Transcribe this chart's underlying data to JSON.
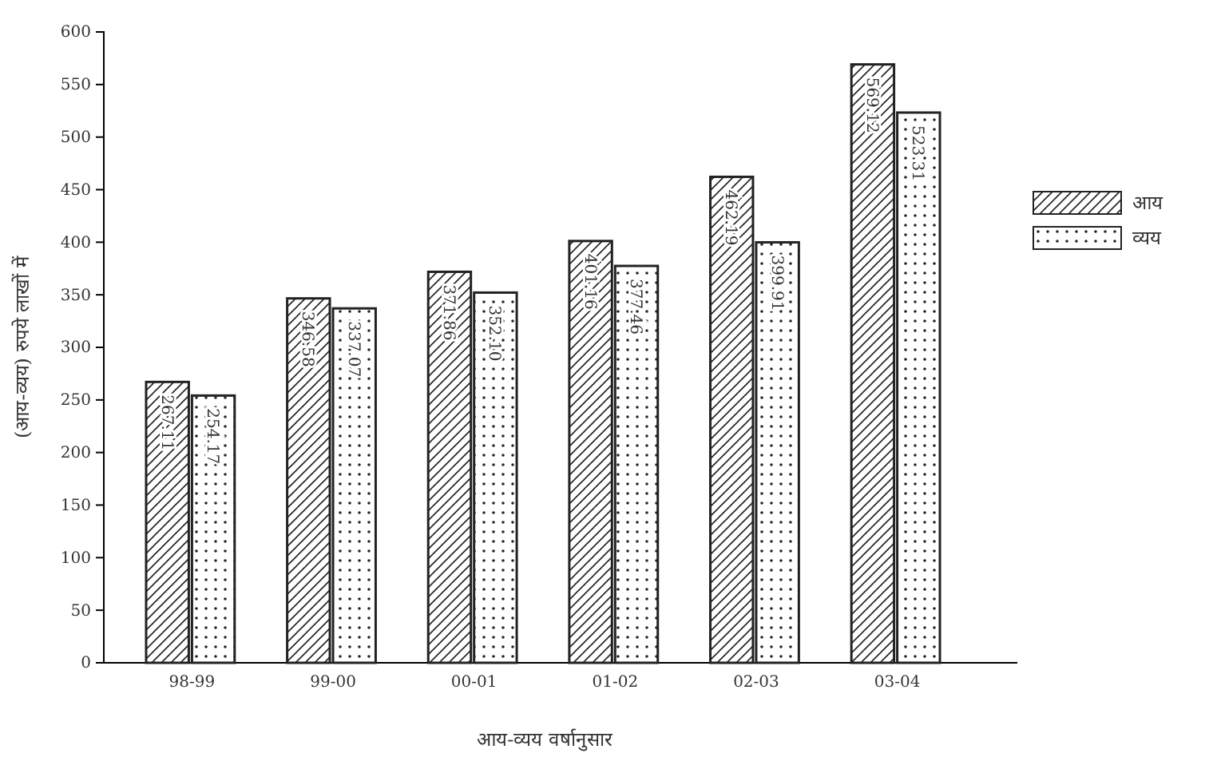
{
  "chart_data": {
    "type": "bar",
    "xlabel": "आय-व्यय वर्षानुसार",
    "ylabel": "(आय-व्यय) रुपये लाखों में",
    "categories": [
      "98-99",
      "99-00",
      "00-01",
      "01-02",
      "02-03",
      "03-04"
    ],
    "series": [
      {
        "name": "आय",
        "color": "#222222",
        "values": [
          267.11,
          346.58,
          371.86,
          401.16,
          462.19,
          569.12
        ],
        "value_labels": [
          "267.11",
          "346.58",
          "371.86",
          "401.16",
          "462.19",
          "569.12"
        ]
      },
      {
        "name": "व्यय",
        "color": "#222222",
        "values": [
          254.17,
          337.07,
          352.1,
          377.46,
          399.91,
          523.31
        ],
        "value_labels": [
          "254.17",
          "337.07",
          "352.10",
          "377.46",
          "399.91",
          "523.31"
        ]
      }
    ],
    "ylim": [
      0,
      600
    ],
    "yticks": [
      0,
      50,
      100,
      150,
      200,
      250,
      300,
      350,
      400,
      450,
      500,
      550,
      600
    ],
    "legend": "right",
    "grid": false
  }
}
